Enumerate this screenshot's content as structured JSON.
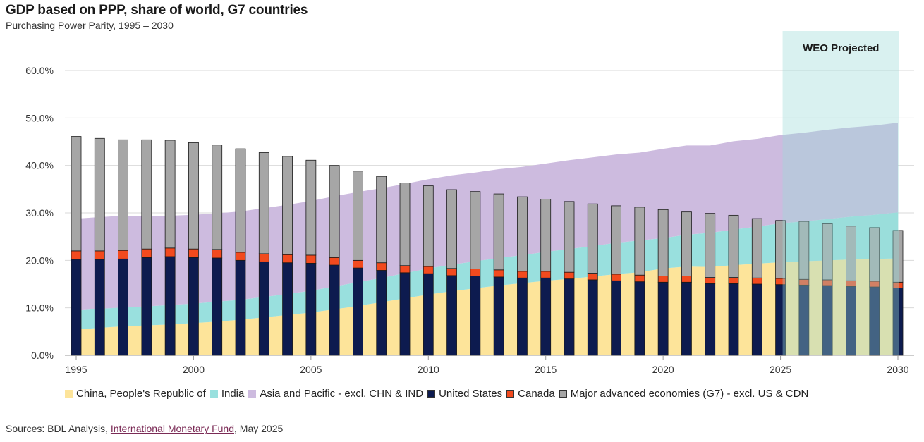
{
  "chart_data": {
    "type": "bar",
    "title": "GDP based on PPP, share of world, G7 countries",
    "subtitle": "Purchasing Power Parity, 1995 – 2030",
    "x": [
      1995,
      1996,
      1997,
      1998,
      1999,
      2000,
      2001,
      2002,
      2003,
      2004,
      2005,
      2006,
      2007,
      2008,
      2009,
      2010,
      2011,
      2012,
      2013,
      2014,
      2015,
      2016,
      2017,
      2018,
      2019,
      2020,
      2021,
      2022,
      2023,
      2024,
      2025,
      2026,
      2027,
      2028,
      2029,
      2030
    ],
    "x_tick_labels": [
      "1995",
      "2000",
      "2005",
      "2010",
      "2015",
      "2020",
      "2025",
      "2030"
    ],
    "y_tick_labels": [
      "0.0%",
      "10.0%",
      "20.0%",
      "30.0%",
      "40.0%",
      "50.0%",
      "60.0%"
    ],
    "ylim": [
      0,
      60
    ],
    "grid": true,
    "legend_position": "bottom",
    "projection": {
      "label": "WEO Projected",
      "start": 2025,
      "end": 2030
    },
    "area_series": [
      {
        "name": "China, People's Republic of",
        "color": "#fde49a",
        "values": [
          5.4,
          5.8,
          6.1,
          6.3,
          6.5,
          6.8,
          7.1,
          7.5,
          8.0,
          8.5,
          9.0,
          9.7,
          10.4,
          11.2,
          12.0,
          12.8,
          13.5,
          14.1,
          14.7,
          15.2,
          15.7,
          16.1,
          16.6,
          17.1,
          17.5,
          18.3,
          18.7,
          18.6,
          19.0,
          19.3,
          19.6,
          19.8,
          20.0,
          20.2,
          20.3,
          20.4
        ]
      },
      {
        "name": "India",
        "color": "#99e0de",
        "values": [
          4.0,
          4.0,
          4.0,
          4.0,
          4.1,
          4.1,
          4.2,
          4.2,
          4.3,
          4.4,
          4.6,
          4.8,
          5.0,
          5.1,
          5.3,
          5.5,
          5.6,
          5.7,
          5.8,
          5.9,
          6.1,
          6.3,
          6.4,
          6.6,
          6.7,
          6.4,
          6.7,
          7.2,
          7.5,
          7.8,
          8.2,
          8.4,
          8.7,
          9.0,
          9.3,
          9.7
        ]
      },
      {
        "name": "Asia and Pacific - excl. CHN & IND",
        "color": "#cdbbdf",
        "values": [
          19.4,
          19.3,
          19.3,
          19.0,
          18.8,
          18.7,
          18.6,
          18.6,
          18.7,
          18.8,
          18.9,
          19.0,
          19.0,
          18.9,
          18.8,
          18.8,
          18.8,
          18.7,
          18.7,
          18.6,
          18.6,
          18.7,
          18.7,
          18.6,
          18.5,
          18.8,
          18.8,
          18.4,
          18.6,
          18.5,
          18.6,
          18.7,
          18.8,
          18.8,
          18.8,
          18.9
        ]
      }
    ],
    "bar_series": [
      {
        "name": "United States",
        "color": "#0d1b4f",
        "values": [
          20.2,
          20.2,
          20.3,
          20.6,
          20.8,
          20.6,
          20.5,
          20.0,
          19.7,
          19.5,
          19.4,
          19.0,
          18.4,
          17.9,
          17.4,
          17.2,
          16.8,
          16.7,
          16.5,
          16.3,
          16.3,
          16.1,
          15.9,
          15.7,
          15.5,
          15.4,
          15.4,
          15.1,
          15.1,
          15.0,
          14.9,
          14.8,
          14.7,
          14.5,
          14.4,
          14.2
        ]
      },
      {
        "name": "Canada",
        "color": "#f24a1e",
        "values": [
          1.8,
          1.8,
          1.8,
          1.8,
          1.8,
          1.8,
          1.8,
          1.7,
          1.7,
          1.7,
          1.7,
          1.6,
          1.6,
          1.6,
          1.5,
          1.5,
          1.5,
          1.5,
          1.5,
          1.4,
          1.4,
          1.4,
          1.4,
          1.4,
          1.4,
          1.3,
          1.3,
          1.3,
          1.3,
          1.3,
          1.3,
          1.2,
          1.2,
          1.2,
          1.2,
          1.2
        ]
      },
      {
        "name": "Major advanced economies (G7) - excl. US & CDN",
        "color": "#a6a6a6",
        "values": [
          24.1,
          23.7,
          23.3,
          23.0,
          22.7,
          22.4,
          22.0,
          21.8,
          21.3,
          20.7,
          20.0,
          19.4,
          18.8,
          18.2,
          17.4,
          17.0,
          16.6,
          16.3,
          16.0,
          15.7,
          15.2,
          14.9,
          14.6,
          14.4,
          14.3,
          14.0,
          13.5,
          13.5,
          13.1,
          12.5,
          12.2,
          12.2,
          11.8,
          11.5,
          11.3,
          10.9
        ]
      }
    ]
  },
  "source": {
    "prefix": "Sources: BDL Analysis, ",
    "link_text": "International Monetary Fund",
    "suffix": ", May 2025"
  }
}
